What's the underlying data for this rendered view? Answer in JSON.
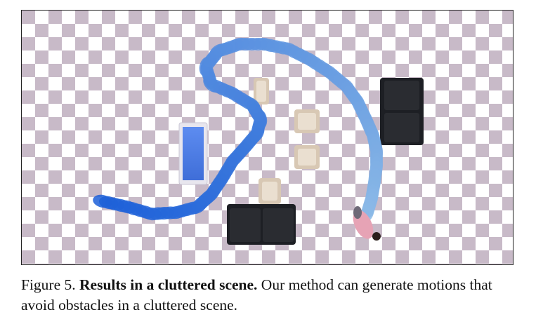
{
  "figure": {
    "checker_colors": {
      "light": "#ffffff",
      "dark": "#c8bac8"
    },
    "trajectory_color_start": "#1c5fd8",
    "trajectory_color_end": "#8ab8e6",
    "person_top_color": "#e6a3b5",
    "sofa_color": "#1d1f24",
    "chair_color": "#d8c8b4",
    "table_color": "#4f7fe0"
  },
  "caption": {
    "label": "Figure 5.",
    "title": "Results in a cluttered scene.",
    "body": "Our method can generate motions that avoid obstacles in a cluttered scene."
  }
}
